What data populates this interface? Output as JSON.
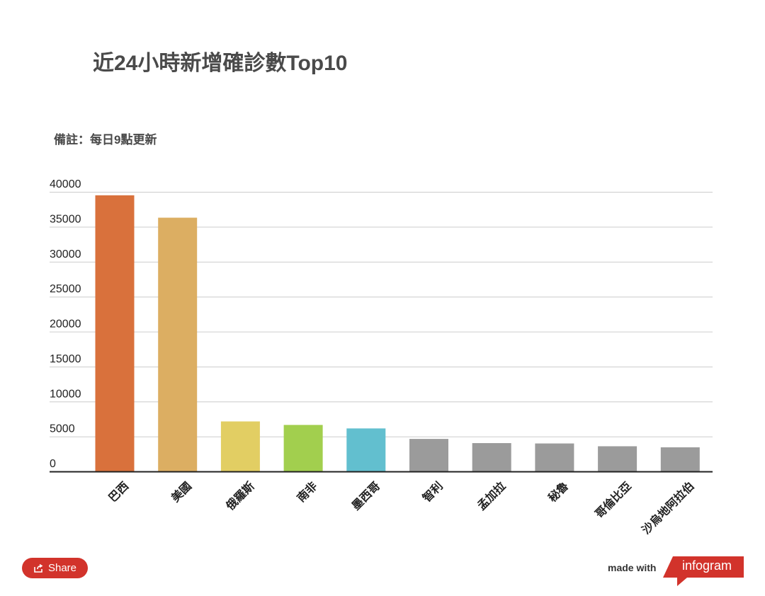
{
  "header": {
    "title": "近24小時新增確診數Top10",
    "note": "備註：每日9點更新"
  },
  "chart_data": {
    "type": "bar",
    "categories": [
      "巴西",
      "美國",
      "俄羅斯",
      "南非",
      "墨西哥",
      "智利",
      "孟加拉",
      "秘魯",
      "哥倫比亞",
      "沙烏地阿拉伯"
    ],
    "values": [
      39500,
      36300,
      7150,
      6650,
      6150,
      4650,
      4050,
      4000,
      3600,
      3450
    ],
    "colors": [
      "#d9713c",
      "#dcae62",
      "#e2ce63",
      "#a2cf4e",
      "#62bfcf",
      "#9b9b9b",
      "#9b9b9b",
      "#9b9b9b",
      "#9b9b9b",
      "#9b9b9b"
    ],
    "yticks": [
      "40000",
      "35000",
      "30000",
      "25000",
      "20000",
      "15000",
      "10000",
      "5000",
      "0"
    ],
    "ylim": [
      0,
      40000
    ],
    "grid": true,
    "legend": "none"
  },
  "footer": {
    "share_label": "Share",
    "share_icon": "share-icon",
    "made_with": "made with",
    "brand": "infogram",
    "brand_color": "#d2332b"
  }
}
